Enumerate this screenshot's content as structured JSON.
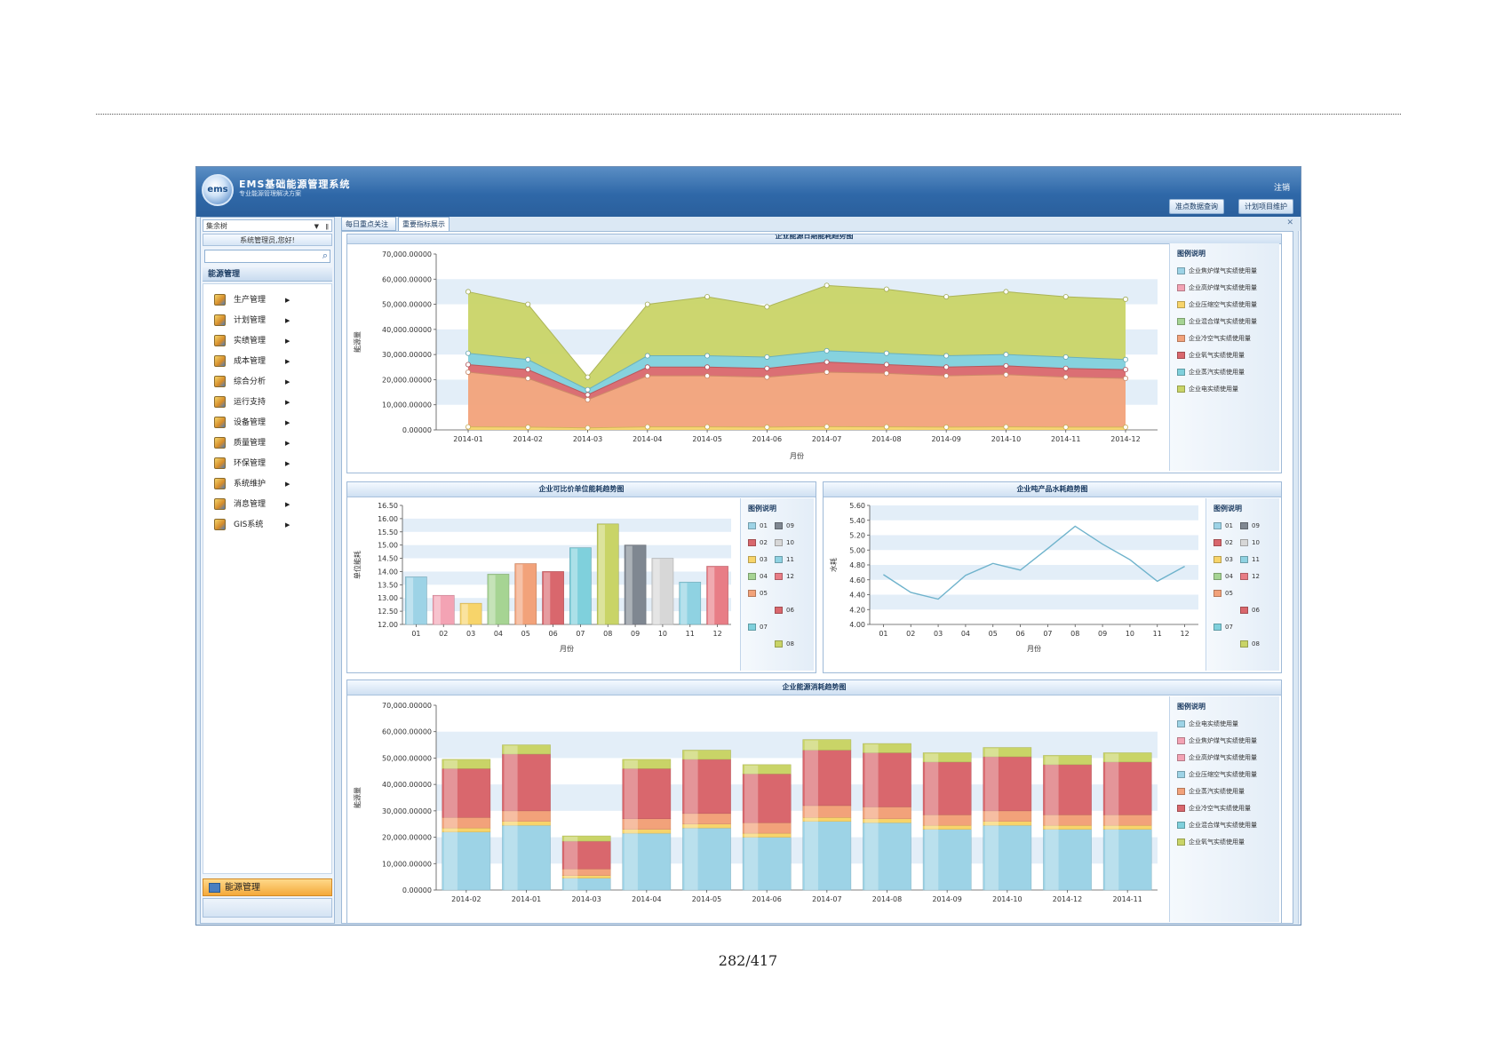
{
  "page": {
    "number": "282/417"
  },
  "app": {
    "title": "EMS基础能源管理系统",
    "subtitle": "专业能源管理解决方案",
    "logo_text": "ems",
    "logout": "注销",
    "toplinks": [
      "准点数据查询",
      "计划项目维护"
    ]
  },
  "sidebar": {
    "select_value": "集余树",
    "welcome": "系统管理员,您好!",
    "section": "能源管理",
    "menu": [
      "生产管理",
      "计划管理",
      "实绩管理",
      "成本管理",
      "综合分析",
      "运行支持",
      "设备管理",
      "质量管理",
      "环保管理",
      "系统维护",
      "消息管理",
      "GIS系统"
    ],
    "bottom_label": "能源管理"
  },
  "tabs": [
    "每日重点关注",
    "重要指标展示"
  ],
  "colors": {
    "blue": "#9dd3e6",
    "pink": "#f3a3b4",
    "yellow": "#f7d46a",
    "green": "#a6d493",
    "orange": "#f2a27a",
    "red": "#d9676d",
    "teal": "#7fd0dc",
    "olive": "#c9d467",
    "slate": "#7f8791",
    "silver": "#d7d7d7",
    "sky": "#8fd2e2",
    "rose": "#e87d86"
  },
  "chart_data": [
    {
      "type": "area",
      "title": "企业能源日期能耗趋势图",
      "xlabel": "月份",
      "ylabel": "能源量",
      "ylim": [
        0,
        70000
      ],
      "yticks": [
        "0.00000",
        "10,000.00000",
        "20,000.00000",
        "30,000.00000",
        "40,000.00000",
        "50,000.00000",
        "60,000.00000",
        "70,000.00000"
      ],
      "x": [
        "2014-01",
        "2014-02",
        "2014-03",
        "2014-04",
        "2014-05",
        "2014-06",
        "2014-07",
        "2014-08",
        "2014-09",
        "2014-10",
        "2014-11",
        "2014-12"
      ],
      "legend_title": "图例说明",
      "legend": [
        "企业焦炉煤气实绩使用量",
        "企业高炉煤气实绩使用量",
        "企业压缩空气实绩使用量",
        "企业混合煤气实绩使用量",
        "企业冷空气实绩使用量",
        "企业氧气实绩使用量",
        "企业蒸汽实绩使用量",
        "企业电实绩使用量"
      ],
      "legend_colors": [
        "blue",
        "pink",
        "yellow",
        "green",
        "orange",
        "red",
        "teal",
        "olive"
      ],
      "series": [
        {
          "color": "olive",
          "values": [
            55000,
            50000,
            21000,
            50000,
            53000,
            49000,
            57500,
            56000,
            53000,
            55000,
            53000,
            52000
          ]
        },
        {
          "color": "teal",
          "values": [
            30500,
            28000,
            16000,
            29500,
            29500,
            29000,
            31500,
            30500,
            29500,
            30000,
            29000,
            28000
          ]
        },
        {
          "color": "red",
          "values": [
            26000,
            24000,
            14000,
            25000,
            25000,
            24500,
            27000,
            26000,
            25000,
            25500,
            24500,
            24000
          ]
        },
        {
          "color": "orange",
          "values": [
            23000,
            20500,
            12000,
            21500,
            21500,
            21000,
            23000,
            22500,
            21500,
            22000,
            21000,
            20500
          ]
        },
        {
          "color": "yellow",
          "values": [
            1200,
            1100,
            800,
            1200,
            1200,
            1100,
            1300,
            1200,
            1100,
            1200,
            1100,
            1100
          ]
        }
      ]
    },
    {
      "type": "bar",
      "title": "企业可比价单位能耗趋势图",
      "xlabel": "月份",
      "ylabel": "单位能耗",
      "ylim": [
        12.0,
        16.5
      ],
      "yticks": [
        "12.00",
        "12.50",
        "13.00",
        "13.50",
        "14.00",
        "14.50",
        "15.00",
        "15.50",
        "16.00",
        "16.50"
      ],
      "categories": [
        "01",
        "02",
        "03",
        "04",
        "05",
        "06",
        "07",
        "08",
        "09",
        "10",
        "11",
        "12"
      ],
      "values": [
        13.8,
        13.1,
        12.8,
        13.9,
        14.3,
        14.0,
        14.9,
        15.8,
        15.0,
        14.5,
        13.6,
        14.2
      ],
      "bar_colors": [
        "blue",
        "pink",
        "yellow",
        "green",
        "orange",
        "red",
        "teal",
        "olive",
        "slate",
        "silver",
        "sky",
        "rose"
      ],
      "legend_title": "图例说明",
      "legend": [
        "01",
        "09",
        "02",
        "10",
        "03",
        "11",
        "04",
        "12",
        "05",
        "06",
        "07",
        "08"
      ],
      "legend_colors": [
        "blue",
        "slate",
        "red",
        "silver",
        "yellow",
        "sky",
        "green",
        "rose",
        "orange",
        "red",
        "teal",
        "olive"
      ]
    },
    {
      "type": "line",
      "title": "企业吨产品水耗趋势图",
      "xlabel": "月份",
      "ylabel": "水耗",
      "ylim": [
        4.0,
        5.6
      ],
      "yticks": [
        "4.00",
        "4.20",
        "4.40",
        "4.60",
        "4.80",
        "5.00",
        "5.20",
        "5.40",
        "5.60"
      ],
      "categories": [
        "01",
        "02",
        "03",
        "04",
        "05",
        "06",
        "07",
        "08",
        "09",
        "10",
        "11",
        "12"
      ],
      "values": [
        4.67,
        4.43,
        4.34,
        4.66,
        4.82,
        4.73,
        5.02,
        5.32,
        5.08,
        4.87,
        4.58,
        4.78
      ],
      "legend_title": "图例说明",
      "legend": [
        "01",
        "09",
        "02",
        "10",
        "03",
        "11",
        "04",
        "12",
        "05",
        "06",
        "07",
        "08"
      ],
      "legend_colors": [
        "blue",
        "slate",
        "red",
        "silver",
        "yellow",
        "sky",
        "green",
        "rose",
        "orange",
        "red",
        "teal",
        "olive"
      ]
    },
    {
      "type": "bar",
      "title": "企业能源消耗趋势图",
      "xlabel": "",
      "ylabel": "能源量",
      "ylim": [
        0,
        70000
      ],
      "yticks": [
        "0.00000",
        "10,000.00000",
        "20,000.00000",
        "30,000.00000",
        "40,000.00000",
        "50,000.00000",
        "60,000.00000",
        "70,000.00000"
      ],
      "categories": [
        "2014-02",
        "2014-01",
        "2014-03",
        "2014-04",
        "2014-05",
        "2014-06",
        "2014-07",
        "2014-08",
        "2014-09",
        "2014-10",
        "2014-12",
        "2014-11"
      ],
      "legend_title": "图例说明",
      "legend": [
        "企业电实绩使用量",
        "企业焦炉煤气实绩使用量",
        "企业高炉煤气实绩使用量",
        "企业压缩空气实绩使用量",
        "企业蒸汽实绩使用量",
        "企业冷空气实绩使用量",
        "企业混合煤气实绩使用量",
        "企业氧气实绩使用量"
      ],
      "legend_colors": [
        "blue",
        "pink",
        "pink",
        "blue",
        "orange",
        "red",
        "teal",
        "olive"
      ],
      "series": [
        {
          "color": "blue",
          "values": [
            22000,
            24500,
            4500,
            21500,
            23500,
            20000,
            26000,
            25500,
            23000,
            24500,
            23000,
            23000
          ]
        },
        {
          "color": "yellow",
          "values": [
            1500,
            1500,
            1000,
            1500,
            1500,
            1500,
            1500,
            1500,
            1500,
            1500,
            1500,
            1500
          ]
        },
        {
          "color": "orange",
          "values": [
            4000,
            4000,
            2500,
            4000,
            4000,
            4000,
            4500,
            4500,
            4000,
            4000,
            4000,
            4000
          ]
        },
        {
          "color": "red",
          "values": [
            18500,
            21500,
            10500,
            19000,
            20500,
            18500,
            21000,
            20500,
            20000,
            20500,
            19000,
            20000
          ]
        },
        {
          "color": "olive",
          "values": [
            3500,
            3500,
            2000,
            3500,
            3500,
            3500,
            4000,
            3500,
            3500,
            3500,
            3500,
            3500
          ]
        }
      ]
    }
  ]
}
